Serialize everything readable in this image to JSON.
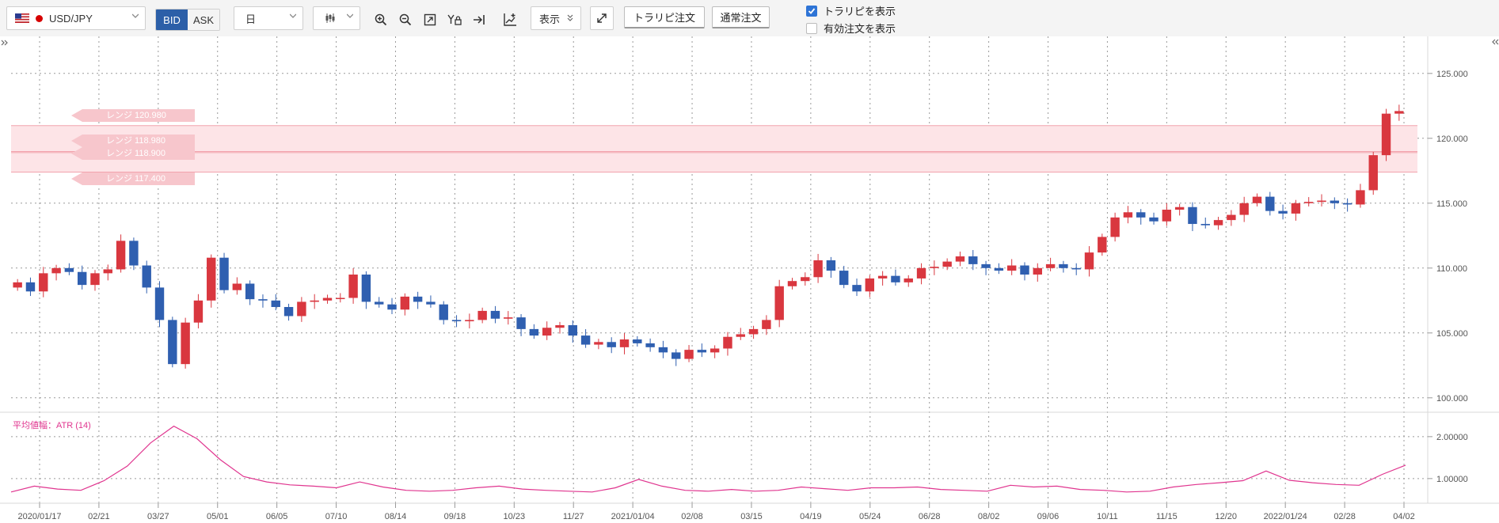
{
  "toolbar": {
    "symbol": "USD/JPY",
    "flag_icon": "us-flag-icon",
    "price_side": {
      "bid": "BID",
      "ask": "ASK",
      "selected": "BID"
    },
    "timeframe": "日",
    "chart_style_icon": "candlestick-icon",
    "tools": [
      "zoom-in-icon",
      "zoom-out-icon",
      "fit-icon",
      "y-lock-icon",
      "scroll-end-icon",
      "add-indicator-icon"
    ],
    "display_label": "表示",
    "expand_icon": "expand-icon",
    "tralipi_order": "トラリピ注文",
    "normal_order": "通常注文",
    "show_tralipi": {
      "label": "トラリピを表示",
      "checked": true
    },
    "show_orders": {
      "label": "有効注文を表示",
      "checked": false
    }
  },
  "ranges": [
    {
      "label": "レンジ 120.980",
      "value": 120.98
    },
    {
      "label": "レンジ 118.980",
      "value": 118.98
    },
    {
      "label": "レンジ 118.900",
      "value": 118.9
    },
    {
      "label": "レンジ 117.400",
      "value": 117.4
    }
  ],
  "indicator_label": "平均値幅：ATR (14)",
  "colors": {
    "up": "#d9373f",
    "down": "#2f5fb0",
    "atr": "#e0358f",
    "range_fill": "#fde4e7",
    "range_line": "#f2a3ad",
    "accent": "#2c5fa8"
  },
  "chart_data": {
    "type": "candlestick",
    "series": [
      {
        "name": "USD/JPY",
        "values": [
          108.9,
          108.2,
          109.6,
          110.0,
          109.7,
          108.7,
          109.6,
          109.9,
          112.1,
          110.2,
          108.5,
          106.0,
          102.6,
          105.8,
          107.5,
          110.8,
          108.3,
          108.8,
          107.6,
          107.5,
          107.0,
          106.3,
          107.4,
          107.5,
          107.7,
          107.7,
          109.5,
          107.4,
          107.2,
          106.8,
          107.8,
          107.4,
          107.2,
          106.0,
          105.9,
          106.0,
          106.7,
          106.1,
          106.2,
          105.3,
          104.8,
          105.4,
          105.6,
          104.8,
          104.1,
          104.3,
          103.9,
          104.5,
          104.2,
          103.9,
          103.5,
          103.0,
          103.7,
          103.5,
          103.8,
          104.7,
          104.9,
          105.3,
          106.0,
          108.6,
          109.0,
          109.3,
          110.6,
          109.8,
          108.7,
          108.2,
          109.2,
          109.4,
          108.9,
          109.2,
          110.0,
          110.1,
          110.5,
          110.9,
          110.3,
          110.0,
          109.8,
          110.2,
          109.5,
          110.0,
          110.3,
          110.0,
          109.9,
          111.2,
          112.4,
          113.9,
          114.3,
          113.9,
          113.6,
          114.5,
          114.7,
          113.4,
          113.3,
          113.7,
          114.1,
          115.0,
          115.5,
          114.4,
          114.2,
          115.0,
          115.1,
          115.2,
          115.0,
          114.9,
          116.0,
          118.7,
          121.9,
          122.1
        ]
      }
    ],
    "x_tick_labels": [
      "2020/01/17",
      "02/21",
      "03/27",
      "05/01",
      "06/05",
      "07/10",
      "08/14",
      "09/18",
      "10/23",
      "11/27",
      "2021/01/04",
      "02/08",
      "03/15",
      "04/19",
      "05/24",
      "06/28",
      "08/02",
      "09/06",
      "10/11",
      "11/15",
      "12/20",
      "2022/01/24",
      "02/28",
      "04/02"
    ],
    "y_tick_labels": [
      "100.000",
      "105.000",
      "110.000",
      "115.000",
      "120.000",
      "125.000"
    ],
    "ylim": [
      99.5,
      127.0
    ],
    "grid": true,
    "indicator": {
      "name": "平均値幅：ATR (14)",
      "values": [
        0.68,
        0.82,
        0.75,
        0.72,
        0.95,
        1.3,
        1.85,
        2.25,
        1.95,
        1.45,
        1.05,
        0.92,
        0.85,
        0.82,
        0.78,
        0.92,
        0.8,
        0.72,
        0.7,
        0.72,
        0.78,
        0.82,
        0.75,
        0.72,
        0.7,
        0.68,
        0.78,
        0.98,
        0.82,
        0.72,
        0.7,
        0.74,
        0.7,
        0.72,
        0.8,
        0.76,
        0.72,
        0.78,
        0.78,
        0.8,
        0.74,
        0.72,
        0.7,
        0.84,
        0.8,
        0.82,
        0.74,
        0.72,
        0.68,
        0.7,
        0.8,
        0.86,
        0.9,
        0.95,
        1.18,
        0.96,
        0.9,
        0.86,
        0.84,
        1.1,
        1.32
      ],
      "y_tick_labels": [
        "1.00000",
        "2.00000"
      ],
      "ylim": [
        0.45,
        2.45
      ]
    }
  }
}
